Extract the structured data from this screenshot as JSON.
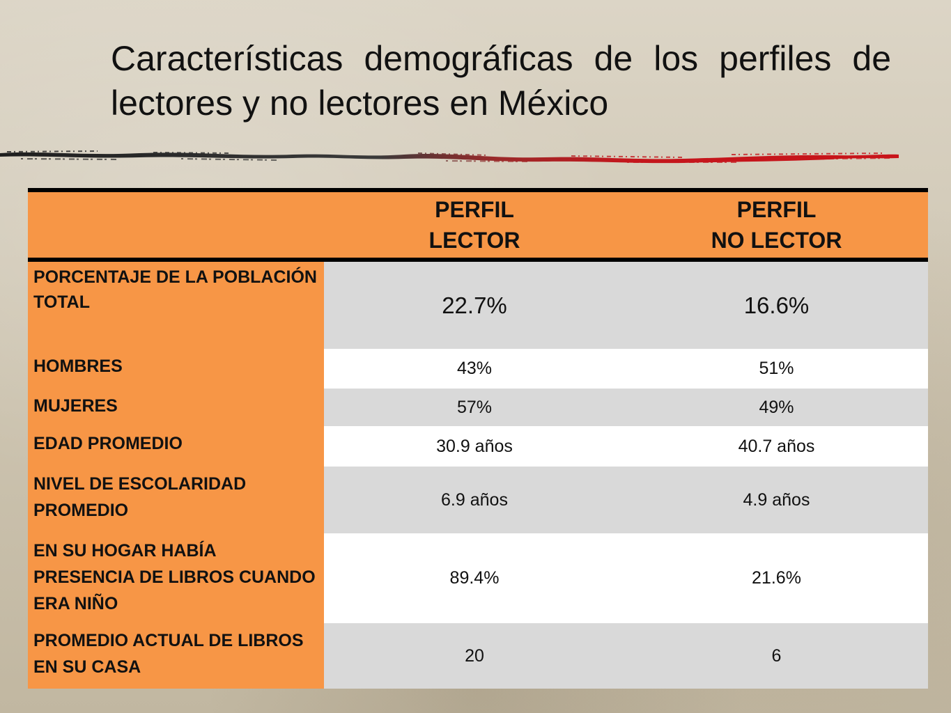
{
  "title": "Características demográficas de los perfiles de lectores y no lectores en México",
  "colors": {
    "accent_orange": "#f79646",
    "row_gray": "#d9d9d9",
    "row_white": "#ffffff",
    "divider_dark": "#2a2a2a",
    "divider_red": "#c4161c"
  },
  "table": {
    "headers": [
      "",
      "PERFIL\nLECTOR",
      "PERFIL\nNO LECTOR"
    ],
    "rows": [
      {
        "label": "PORCENTAJE DE LA POBLACIÓN TOTAL",
        "lector": "22.7%",
        "no_lector": "16.6%"
      },
      {
        "label": "HOMBRES",
        "lector": "43%",
        "no_lector": "51%"
      },
      {
        "label": "MUJERES",
        "lector": "57%",
        "no_lector": "49%"
      },
      {
        "label": "EDAD PROMEDIO",
        "lector": "30.9 años",
        "no_lector": "40.7 años"
      },
      {
        "label": "NIVEL DE ESCOLARIDAD PROMEDIO",
        "lector": "6.9 años",
        "no_lector": "4.9 años"
      },
      {
        "label": "EN SU HOGAR HABÍA PRESENCIA DE LIBROS CUANDO ERA NIÑO",
        "lector": "89.4%",
        "no_lector": "21.6%"
      },
      {
        "label": "PROMEDIO ACTUAL DE LIBROS EN SU CASA",
        "lector": "20",
        "no_lector": "6"
      }
    ]
  }
}
